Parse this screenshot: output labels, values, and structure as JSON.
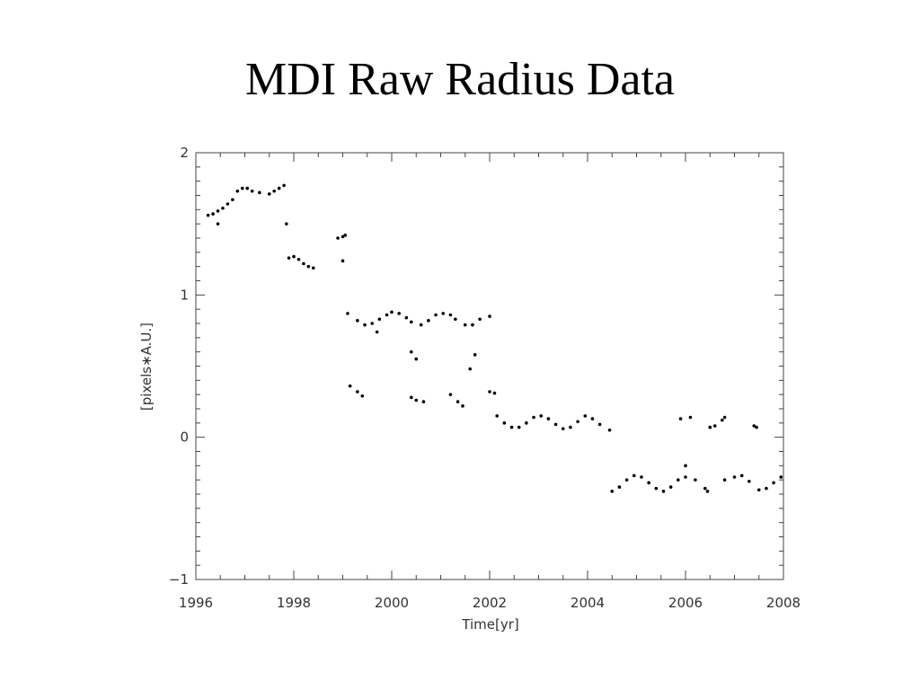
{
  "chart_data": {
    "type": "scatter",
    "title": "MDI Raw Radius Data",
    "x_label": "Time[yr]",
    "y_label": "[pixels∗A.U.]",
    "xlim": [
      1996,
      2008
    ],
    "xticks": [
      1996,
      1998,
      2000,
      2002,
      2004,
      2006,
      2008
    ],
    "ylim": [
      -1,
      2
    ],
    "yticks": [
      {
        "value": -1,
        "label": "−1"
      },
      0,
      1,
      2
    ],
    "xminor": 4,
    "yminor": 10,
    "color": "#000000",
    "x": [
      1996.25,
      1996.35,
      1996.45,
      1996.55,
      1996.65,
      1996.75,
      1996.85,
      1996.95,
      1997.05,
      1997.15,
      1997.3,
      1997.5,
      1997.6,
      1997.7,
      1997.8,
      1996.45,
      1997.85,
      1997.9,
      1998.0,
      1998.1,
      1998.2,
      1998.3,
      1998.4,
      1998.9,
      1999.0,
      1999.05,
      1999.0,
      1999.1,
      1999.3,
      1999.45,
      1999.6,
      1999.75,
      1999.9,
      2000.0,
      2000.15,
      2000.3,
      2000.4,
      2000.6,
      2000.75,
      2000.9,
      2001.05,
      2001.2,
      2001.3,
      2001.5,
      2001.65,
      2001.8,
      2002.0,
      1999.15,
      1999.3,
      1999.4,
      2000.4,
      2000.5,
      2000.65,
      2001.2,
      2001.35,
      2001.45,
      2000.4,
      2000.5,
      2001.7,
      1999.7,
      2001.6,
      2002.0,
      2002.1,
      2002.15,
      2002.3,
      2002.45,
      2002.6,
      2002.75,
      2002.9,
      2003.05,
      2003.2,
      2003.35,
      2003.5,
      2003.65,
      2003.8,
      2003.95,
      2004.1,
      2004.25,
      2004.45,
      2004.5,
      2004.65,
      2004.8,
      2004.95,
      2005.1,
      2005.25,
      2005.4,
      2005.55,
      2005.7,
      2005.85,
      2005.9,
      2006.1,
      2006.0,
      2006.0,
      2006.2,
      2006.4,
      2006.45,
      2006.5,
      2006.6,
      2006.75,
      2006.8,
      2006.8,
      2007.0,
      2007.15,
      2007.3,
      2007.5,
      2007.65,
      2007.8,
      2007.95,
      2007.4,
      2007.45
    ],
    "y": [
      1.56,
      1.57,
      1.59,
      1.61,
      1.64,
      1.67,
      1.73,
      1.75,
      1.75,
      1.73,
      1.72,
      1.71,
      1.73,
      1.75,
      1.77,
      1.5,
      1.5,
      1.26,
      1.27,
      1.25,
      1.22,
      1.2,
      1.19,
      1.4,
      1.41,
      1.42,
      1.24,
      0.87,
      0.82,
      0.79,
      0.8,
      0.83,
      0.86,
      0.88,
      0.87,
      0.84,
      0.81,
      0.79,
      0.82,
      0.86,
      0.87,
      0.86,
      0.83,
      0.79,
      0.79,
      0.83,
      0.85,
      0.36,
      0.32,
      0.29,
      0.28,
      0.26,
      0.25,
      0.3,
      0.25,
      0.22,
      0.6,
      0.55,
      0.58,
      0.74,
      0.48,
      0.32,
      0.31,
      0.15,
      0.1,
      0.07,
      0.07,
      0.1,
      0.14,
      0.15,
      0.13,
      0.09,
      0.06,
      0.07,
      0.11,
      0.15,
      0.13,
      0.09,
      0.05,
      -0.38,
      -0.35,
      -0.3,
      -0.27,
      -0.28,
      -0.32,
      -0.36,
      -0.38,
      -0.35,
      -0.3,
      0.13,
      0.14,
      -0.2,
      -0.28,
      -0.3,
      -0.36,
      -0.38,
      0.07,
      0.08,
      0.12,
      0.14,
      -0.3,
      -0.28,
      -0.27,
      -0.31,
      -0.37,
      -0.36,
      -0.32,
      -0.28,
      0.08,
      0.07
    ]
  }
}
